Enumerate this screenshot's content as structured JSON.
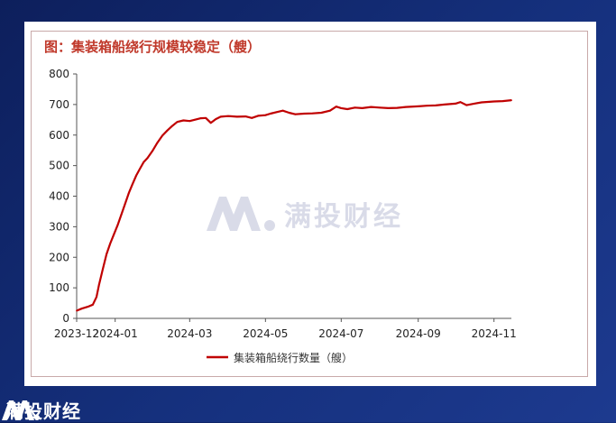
{
  "chart_data": {
    "type": "line",
    "title": "图：集装箱船绕行规模较稳定（艘）",
    "xlabel": "",
    "ylabel": "",
    "ylim": [
      0,
      800
    ],
    "yticks": [
      0,
      100,
      200,
      300,
      400,
      500,
      600,
      700,
      800
    ],
    "xticks": [
      "2023-12",
      "2024-01",
      "2024-03",
      "2024-05",
      "2024-07",
      "2024-09",
      "2024-11"
    ],
    "xtick_dates": [
      "2023-12-01",
      "2024-01-01",
      "2024-03-01",
      "2024-05-01",
      "2024-07-01",
      "2024-09-01",
      "2024-11-01"
    ],
    "xrange": [
      "2023-12-01",
      "2024-11-15"
    ],
    "grid": false,
    "legend_position": "bottom",
    "series": [
      {
        "name": "集装箱船绕行数量（艘）",
        "color": "#c00000",
        "points": [
          [
            "2023-12-01",
            25
          ],
          [
            "2023-12-05",
            32
          ],
          [
            "2023-12-10",
            38
          ],
          [
            "2023-12-14",
            45
          ],
          [
            "2023-12-17",
            70
          ],
          [
            "2023-12-19",
            110
          ],
          [
            "2023-12-22",
            160
          ],
          [
            "2023-12-25",
            210
          ],
          [
            "2023-12-28",
            245
          ],
          [
            "2023-12-31",
            275
          ],
          [
            "2024-01-03",
            305
          ],
          [
            "2024-01-06",
            340
          ],
          [
            "2024-01-09",
            375
          ],
          [
            "2024-01-12",
            410
          ],
          [
            "2024-01-15",
            440
          ],
          [
            "2024-01-18",
            468
          ],
          [
            "2024-01-21",
            490
          ],
          [
            "2024-01-24",
            512
          ],
          [
            "2024-01-27",
            525
          ],
          [
            "2024-01-31",
            548
          ],
          [
            "2024-02-04",
            575
          ],
          [
            "2024-02-08",
            598
          ],
          [
            "2024-02-12",
            615
          ],
          [
            "2024-02-16",
            630
          ],
          [
            "2024-02-20",
            643
          ],
          [
            "2024-02-25",
            648
          ],
          [
            "2024-03-01",
            646
          ],
          [
            "2024-03-05",
            650
          ],
          [
            "2024-03-10",
            655
          ],
          [
            "2024-03-14",
            656
          ],
          [
            "2024-03-18",
            640
          ],
          [
            "2024-03-22",
            652
          ],
          [
            "2024-03-26",
            660
          ],
          [
            "2024-04-01",
            662
          ],
          [
            "2024-04-08",
            660
          ],
          [
            "2024-04-15",
            661
          ],
          [
            "2024-04-20",
            656
          ],
          [
            "2024-04-25",
            663
          ],
          [
            "2024-05-01",
            665
          ],
          [
            "2024-05-05",
            670
          ],
          [
            "2024-05-10",
            675
          ],
          [
            "2024-05-15",
            680
          ],
          [
            "2024-05-20",
            673
          ],
          [
            "2024-05-25",
            668
          ],
          [
            "2024-06-01",
            670
          ],
          [
            "2024-06-08",
            671
          ],
          [
            "2024-06-15",
            673
          ],
          [
            "2024-06-22",
            680
          ],
          [
            "2024-06-27",
            693
          ],
          [
            "2024-07-01",
            688
          ],
          [
            "2024-07-06",
            685
          ],
          [
            "2024-07-12",
            690
          ],
          [
            "2024-07-18",
            688
          ],
          [
            "2024-07-25",
            692
          ],
          [
            "2024-08-01",
            690
          ],
          [
            "2024-08-08",
            688
          ],
          [
            "2024-08-15",
            689
          ],
          [
            "2024-08-22",
            692
          ],
          [
            "2024-09-01",
            694
          ],
          [
            "2024-09-08",
            696
          ],
          [
            "2024-09-15",
            697
          ],
          [
            "2024-09-22",
            700
          ],
          [
            "2024-10-01",
            703
          ],
          [
            "2024-10-05",
            708
          ],
          [
            "2024-10-10",
            698
          ],
          [
            "2024-10-16",
            703
          ],
          [
            "2024-10-22",
            707
          ],
          [
            "2024-11-01",
            710
          ],
          [
            "2024-11-08",
            711
          ],
          [
            "2024-11-15",
            714
          ]
        ]
      }
    ]
  },
  "brand": {
    "watermark_text": "满投财经",
    "footer_text": "满投财经",
    "watermark_color": "#d9dbe8",
    "footer_bg": "#0d1f5c"
  }
}
